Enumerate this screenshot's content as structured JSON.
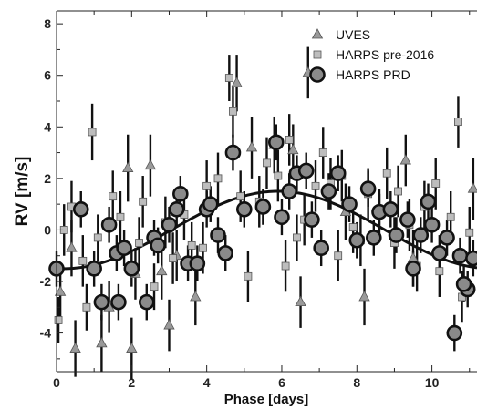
{
  "chart_data": {
    "type": "scatter",
    "xlabel": "Phase [days]",
    "ylabel": "RV [m/s]",
    "xlim": [
      0,
      11.2
    ],
    "ylim": [
      -5.5,
      8.5
    ],
    "xticks": [
      0,
      2,
      4,
      6,
      8,
      10
    ],
    "yticks": [
      -4,
      -2,
      0,
      2,
      4,
      6,
      8
    ],
    "legend_position": "top-right",
    "series": [
      {
        "name": "UVES",
        "marker": "triangle",
        "color": "#9a9a9a",
        "points": [
          [
            0.1,
            -2.4,
            1.0
          ],
          [
            0.4,
            -0.7,
            1.1
          ],
          [
            0.5,
            -4.6,
            1.1
          ],
          [
            1.2,
            -4.4,
            1.1
          ],
          [
            1.4,
            -3.0,
            1.0
          ],
          [
            1.9,
            2.4,
            1.3
          ],
          [
            2.0,
            -4.6,
            1.2
          ],
          [
            2.1,
            -1.7,
            1.0
          ],
          [
            2.5,
            2.5,
            1.2
          ],
          [
            2.8,
            -1.6,
            1.1
          ],
          [
            3.0,
            -3.7,
            1.0
          ],
          [
            3.2,
            -1.0,
            1.0
          ],
          [
            3.7,
            -2.6,
            1.1
          ],
          [
            4.8,
            5.7,
            1.1
          ],
          [
            5.2,
            3.2,
            1.2
          ],
          [
            5.8,
            3.3,
            1.1
          ],
          [
            6.3,
            3.1,
            1.0
          ],
          [
            6.5,
            -2.8,
            1.0
          ],
          [
            6.7,
            6.1,
            1.0
          ],
          [
            7.7,
            0.7,
            1.1
          ],
          [
            8.2,
            -2.6,
            1.1
          ],
          [
            9.3,
            2.7,
            1.0
          ],
          [
            9.5,
            -1.1,
            1.1
          ],
          [
            11.1,
            1.6,
            1.2
          ]
        ]
      },
      {
        "name": "HARPS pre-2016",
        "marker": "square",
        "color": "#bdbdbd",
        "points": [
          [
            0.05,
            -3.5,
            0.9
          ],
          [
            0.2,
            0.0,
            1.0
          ],
          [
            0.4,
            0.9,
            1.0
          ],
          [
            0.7,
            -1.2,
            1.0
          ],
          [
            0.8,
            -3.0,
            0.9
          ],
          [
            0.95,
            3.8,
            1.1
          ],
          [
            1.1,
            -0.3,
            0.9
          ],
          [
            1.5,
            1.3,
            1.0
          ],
          [
            1.7,
            0.5,
            1.0
          ],
          [
            2.2,
            -0.5,
            1.0
          ],
          [
            2.3,
            1.1,
            1.0
          ],
          [
            2.6,
            -2.2,
            0.9
          ],
          [
            2.9,
            0.3,
            1.0
          ],
          [
            3.1,
            -1.1,
            1.0
          ],
          [
            3.4,
            0.6,
            1.0
          ],
          [
            3.6,
            -0.6,
            0.9
          ],
          [
            3.9,
            -0.7,
            1.0
          ],
          [
            4.0,
            1.7,
            1.0
          ],
          [
            4.3,
            2.0,
            1.0
          ],
          [
            4.6,
            5.9,
            0.9
          ],
          [
            4.7,
            4.6,
            1.0
          ],
          [
            4.9,
            1.3,
            1.0
          ],
          [
            5.1,
            -1.8,
            1.0
          ],
          [
            5.4,
            1.1,
            1.0
          ],
          [
            5.6,
            2.6,
            1.0
          ],
          [
            5.9,
            2.1,
            1.0
          ],
          [
            6.1,
            -1.4,
            1.0
          ],
          [
            6.2,
            3.5,
            1.0
          ],
          [
            6.4,
            -0.3,
            0.9
          ],
          [
            6.6,
            0.4,
            1.0
          ],
          [
            6.9,
            1.7,
            1.0
          ],
          [
            7.1,
            3.0,
            1.0
          ],
          [
            7.3,
            1.8,
            1.0
          ],
          [
            7.5,
            -1.0,
            1.0
          ],
          [
            7.6,
            2.1,
            1.0
          ],
          [
            7.9,
            0.1,
            1.0
          ],
          [
            8.1,
            -0.4,
            1.0
          ],
          [
            8.3,
            1.4,
            1.0
          ],
          [
            8.6,
            0.6,
            1.0
          ],
          [
            8.8,
            2.2,
            1.0
          ],
          [
            9.0,
            -0.5,
            1.0
          ],
          [
            9.1,
            1.5,
            1.0
          ],
          [
            9.4,
            0.2,
            1.0
          ],
          [
            9.6,
            -1.4,
            1.0
          ],
          [
            9.8,
            0.9,
            1.0
          ],
          [
            10.1,
            1.8,
            1.0
          ],
          [
            10.2,
            -1.6,
            1.0
          ],
          [
            10.5,
            0.5,
            1.0
          ],
          [
            10.7,
            4.2,
            1.0
          ],
          [
            10.8,
            -2.6,
            1.0
          ],
          [
            11.0,
            -0.1,
            1.0
          ]
        ]
      },
      {
        "name": "HARPS PRD",
        "marker": "circle",
        "color": "#8a8a8a",
        "points": [
          [
            0.0,
            -1.5,
            0.7
          ],
          [
            0.65,
            0.8,
            0.7
          ],
          [
            1.0,
            -1.5,
            0.7
          ],
          [
            1.2,
            -2.8,
            0.7
          ],
          [
            1.4,
            0.2,
            0.7
          ],
          [
            1.6,
            -0.9,
            0.7
          ],
          [
            1.65,
            -2.8,
            0.7
          ],
          [
            1.8,
            -0.7,
            0.7
          ],
          [
            2.0,
            -1.5,
            0.7
          ],
          [
            2.4,
            -2.8,
            0.7
          ],
          [
            2.6,
            -0.3,
            0.7
          ],
          [
            2.7,
            -0.6,
            0.7
          ],
          [
            3.0,
            0.2,
            0.7
          ],
          [
            3.2,
            0.8,
            0.7
          ],
          [
            3.3,
            1.4,
            0.7
          ],
          [
            3.5,
            -1.3,
            0.7
          ],
          [
            3.75,
            -1.3,
            0.7
          ],
          [
            4.0,
            0.8,
            0.7
          ],
          [
            4.1,
            1.0,
            0.7
          ],
          [
            4.3,
            -0.2,
            0.7
          ],
          [
            4.5,
            -0.9,
            0.7
          ],
          [
            4.7,
            3.0,
            0.7
          ],
          [
            5.0,
            0.8,
            0.7
          ],
          [
            5.5,
            0.9,
            0.7
          ],
          [
            5.85,
            3.4,
            0.7
          ],
          [
            6.0,
            0.5,
            0.7
          ],
          [
            6.2,
            1.5,
            0.7
          ],
          [
            6.4,
            2.2,
            0.7
          ],
          [
            6.65,
            2.3,
            0.7
          ],
          [
            6.8,
            0.4,
            0.7
          ],
          [
            7.05,
            -0.7,
            0.7
          ],
          [
            7.25,
            1.5,
            0.7
          ],
          [
            7.5,
            2.2,
            0.7
          ],
          [
            7.8,
            1.0,
            0.7
          ],
          [
            8.0,
            -0.4,
            0.7
          ],
          [
            8.3,
            1.6,
            0.7
          ],
          [
            8.45,
            -0.3,
            0.7
          ],
          [
            8.6,
            0.7,
            0.7
          ],
          [
            8.9,
            0.8,
            0.7
          ],
          [
            9.05,
            -0.2,
            0.7
          ],
          [
            9.35,
            0.4,
            0.7
          ],
          [
            9.5,
            -1.5,
            0.7
          ],
          [
            9.7,
            -0.2,
            0.7
          ],
          [
            9.9,
            1.1,
            0.7
          ],
          [
            10.0,
            0.2,
            0.7
          ],
          [
            10.2,
            -0.9,
            0.7
          ],
          [
            10.4,
            -0.3,
            0.7
          ],
          [
            10.6,
            -4.0,
            0.7
          ],
          [
            10.75,
            -1.0,
            0.7
          ],
          [
            10.95,
            -2.3,
            0.7
          ],
          [
            11.1,
            -1.1,
            0.7
          ],
          [
            10.85,
            -2.1,
            0.7
          ]
        ]
      }
    ],
    "model_curve": {
      "type": "sinusoid",
      "period": 11.4,
      "amplitude": 1.5,
      "offset": 0.0,
      "peak_phase": 5.9,
      "color": "#111111"
    }
  }
}
